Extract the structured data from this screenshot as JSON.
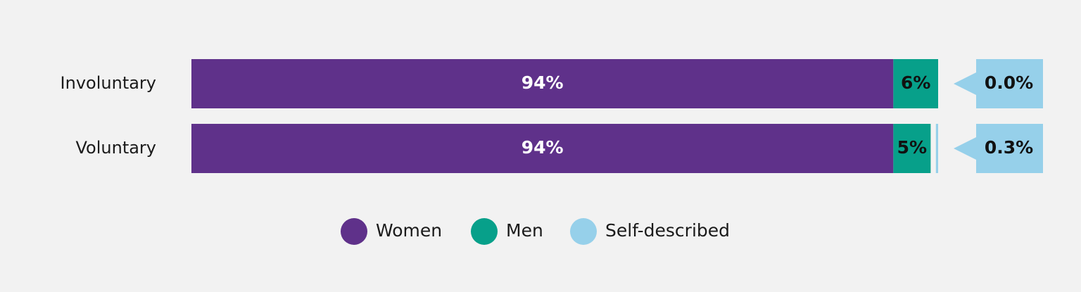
{
  "chart_data": {
    "type": "bar",
    "orientation": "horizontal",
    "stacked": true,
    "categories": [
      "Involuntary",
      "Voluntary"
    ],
    "series": [
      {
        "name": "Women",
        "values": [
          94,
          94
        ],
        "labels": [
          "94%",
          "94%"
        ],
        "color": "#5f318a"
      },
      {
        "name": "Men",
        "values": [
          6,
          5
        ],
        "labels": [
          "6%",
          "5%"
        ],
        "color": "#07a08a"
      },
      {
        "name": "Self-described",
        "values": [
          0.0,
          0.3
        ],
        "labels": [
          "0.0%",
          "0.3%"
        ],
        "color": "#96d0ea"
      }
    ],
    "title": "",
    "xlabel": "",
    "ylabel": "",
    "xlim": [
      0,
      100
    ],
    "grid": false,
    "legend_position": "bottom"
  }
}
